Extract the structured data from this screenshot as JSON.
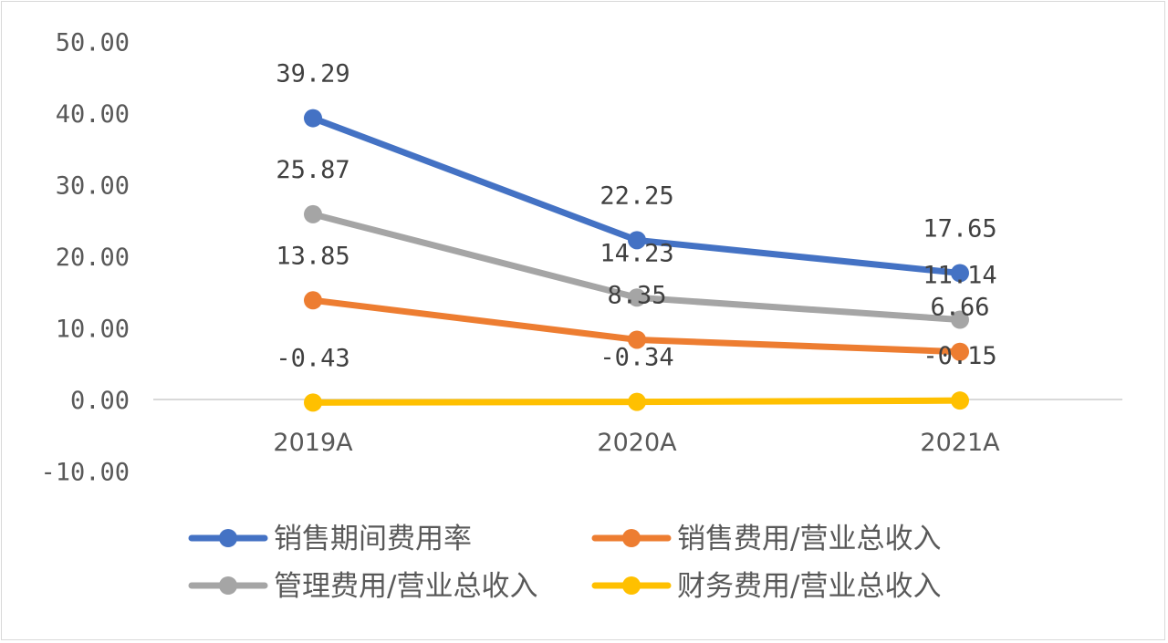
{
  "chart_data": {
    "type": "line",
    "categories": [
      "2019A",
      "2020A",
      "2021A"
    ],
    "ylim": [
      -10,
      50
    ],
    "yticks": [
      "50.00",
      "40.00",
      "30.00",
      "20.00",
      "10.00",
      "0.00",
      "-10.00"
    ],
    "ytick_values": [
      50,
      40,
      30,
      20,
      10,
      0,
      -10
    ],
    "grid": false,
    "legend_position": "bottom",
    "series": [
      {
        "name": "销售期间费用率",
        "color": "#4472C4",
        "values": [
          39.29,
          22.25,
          17.65
        ],
        "labels": [
          "39.29",
          "22.25",
          "17.65"
        ]
      },
      {
        "name": "销售费用/营业总收入",
        "color": "#ED7D31",
        "values": [
          13.85,
          8.35,
          6.66
        ],
        "labels": [
          "13.85",
          "8.35",
          "6.66"
        ]
      },
      {
        "name": "管理费用/营业总收入",
        "color": "#A5A5A5",
        "values": [
          25.87,
          14.23,
          11.14
        ],
        "labels": [
          "25.87",
          "14.23",
          "11.14"
        ]
      },
      {
        "name": "财务费用/营业总收入",
        "color": "#FFC000",
        "values": [
          -0.43,
          -0.34,
          -0.15
        ],
        "labels": [
          "-0.43",
          "-0.34",
          "-0.15"
        ]
      }
    ]
  }
}
